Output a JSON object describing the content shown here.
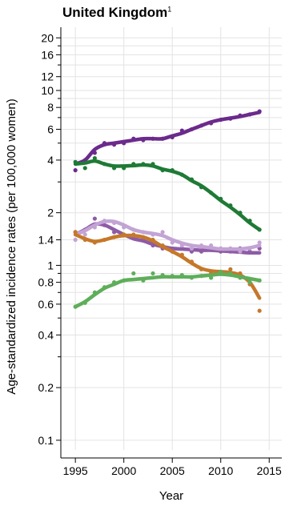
{
  "chart_data": {
    "type": "line",
    "title": "United Kingdom",
    "title_footnote": "1",
    "xlabel": "Year",
    "ylabel": "Age-standardized incidence rates (per 100,000 women)",
    "yscale": "log",
    "xlim": [
      1993.5,
      2016.3
    ],
    "ylim": [
      0.088,
      23
    ],
    "x_ticks": [
      1995,
      2000,
      2005,
      2010,
      2015
    ],
    "y_ticks_labeled": [
      0.1,
      0.2,
      0.4,
      0.6,
      0.8,
      1,
      1.4,
      2,
      4,
      6,
      8,
      10,
      12,
      16,
      20
    ],
    "y_ticks_minor": [
      0.3,
      0.5,
      0.7,
      0.9,
      3,
      5,
      7,
      9,
      14,
      18
    ],
    "grid": true,
    "legend": "none",
    "series": [
      {
        "color": "#6b2a8c",
        "x": [
          1995,
          1996,
          1997,
          1998,
          1999,
          2000,
          2001,
          2002,
          2003,
          2004,
          2005,
          2006,
          2007,
          2008,
          2009,
          2010,
          2011,
          2012,
          2013,
          2014
        ],
        "points": [
          3.5,
          4.0,
          4.4,
          5.0,
          4.9,
          5.0,
          5.3,
          5.2,
          5.3,
          5.3,
          5.4,
          5.9,
          6.0,
          6.3,
          6.5,
          6.8,
          6.9,
          7.2,
          7.3,
          7.6
        ],
        "trend": [
          3.8,
          4.0,
          4.6,
          4.9,
          5.0,
          5.1,
          5.2,
          5.3,
          5.3,
          5.3,
          5.5,
          5.7,
          6.0,
          6.3,
          6.6,
          6.8,
          6.95,
          7.1,
          7.3,
          7.5
        ]
      },
      {
        "color": "#1e7a35",
        "x": [
          1995,
          1996,
          1997,
          1998,
          1999,
          2000,
          2001,
          2002,
          2003,
          2004,
          2005,
          2006,
          2007,
          2008,
          2009,
          2010,
          2011,
          2012,
          2013,
          2014
        ],
        "points": [
          3.9,
          3.6,
          4.1,
          3.8,
          3.6,
          3.6,
          3.8,
          3.8,
          3.8,
          3.5,
          3.5,
          3.3,
          3.1,
          2.8,
          2.6,
          2.4,
          2.2,
          2.0,
          1.8,
          1.6
        ],
        "trend": [
          3.8,
          3.85,
          3.95,
          3.8,
          3.7,
          3.7,
          3.72,
          3.75,
          3.7,
          3.55,
          3.45,
          3.3,
          3.05,
          2.85,
          2.6,
          2.35,
          2.15,
          1.95,
          1.75,
          1.6
        ]
      },
      {
        "color": "#8e5ba6",
        "x": [
          1995,
          1996,
          1997,
          1998,
          1999,
          2000,
          2001,
          2002,
          2003,
          2004,
          2005,
          2006,
          2007,
          2008,
          2009,
          2010,
          2011,
          2012,
          2013,
          2014
        ],
        "points": [
          1.55,
          1.6,
          1.85,
          1.7,
          1.55,
          1.5,
          1.45,
          1.4,
          1.3,
          1.25,
          1.2,
          1.25,
          1.2,
          1.2,
          1.25,
          1.2,
          1.2,
          1.25,
          1.2,
          1.25
        ],
        "trend": [
          1.5,
          1.6,
          1.72,
          1.7,
          1.6,
          1.5,
          1.42,
          1.38,
          1.32,
          1.28,
          1.25,
          1.24,
          1.23,
          1.22,
          1.22,
          1.21,
          1.2,
          1.19,
          1.18,
          1.18
        ]
      },
      {
        "color": "#c3a3d4",
        "x": [
          1995,
          1996,
          1997,
          1998,
          1999,
          2000,
          2001,
          2002,
          2003,
          2004,
          2005,
          2006,
          2007,
          2008,
          2009,
          2010,
          2011,
          2012,
          2013,
          2014
        ],
        "points": [
          1.4,
          1.5,
          1.65,
          1.8,
          1.75,
          1.65,
          1.6,
          1.55,
          1.5,
          1.55,
          1.35,
          1.3,
          1.25,
          1.3,
          1.3,
          1.25,
          1.25,
          1.2,
          1.25,
          1.35
        ],
        "trend": [
          1.5,
          1.58,
          1.7,
          1.78,
          1.78,
          1.7,
          1.6,
          1.55,
          1.52,
          1.48,
          1.4,
          1.34,
          1.3,
          1.28,
          1.26,
          1.24,
          1.24,
          1.24,
          1.26,
          1.3
        ]
      },
      {
        "color": "#c5782a",
        "x": [
          1995,
          1996,
          1997,
          1998,
          1999,
          2000,
          2001,
          2002,
          2003,
          2004,
          2005,
          2006,
          2007,
          2008,
          2009,
          2010,
          2011,
          2012,
          2013,
          2014
        ],
        "points": [
          1.55,
          1.4,
          1.35,
          1.4,
          1.45,
          1.5,
          1.5,
          1.45,
          1.4,
          1.3,
          1.2,
          1.15,
          1.05,
          0.95,
          0.9,
          0.9,
          0.95,
          0.9,
          0.78,
          0.55
        ],
        "trend": [
          1.5,
          1.42,
          1.37,
          1.4,
          1.45,
          1.48,
          1.48,
          1.45,
          1.38,
          1.28,
          1.2,
          1.12,
          1.03,
          0.96,
          0.93,
          0.92,
          0.91,
          0.88,
          0.8,
          0.65
        ]
      },
      {
        "color": "#5eae5a",
        "x": [
          1995,
          1996,
          1997,
          1998,
          1999,
          2000,
          2001,
          2002,
          2003,
          2004,
          2005,
          2006,
          2007,
          2008,
          2009,
          2010,
          2011,
          2012,
          2013,
          2014
        ],
        "points": [
          0.58,
          0.61,
          0.7,
          0.75,
          0.8,
          0.82,
          0.9,
          0.82,
          0.9,
          0.88,
          0.87,
          0.88,
          0.85,
          0.87,
          0.85,
          0.92,
          0.9,
          0.85,
          0.8,
          0.82
        ],
        "trend": [
          0.58,
          0.62,
          0.68,
          0.74,
          0.78,
          0.82,
          0.83,
          0.84,
          0.85,
          0.86,
          0.86,
          0.86,
          0.86,
          0.87,
          0.88,
          0.89,
          0.88,
          0.86,
          0.84,
          0.82
        ]
      }
    ]
  }
}
